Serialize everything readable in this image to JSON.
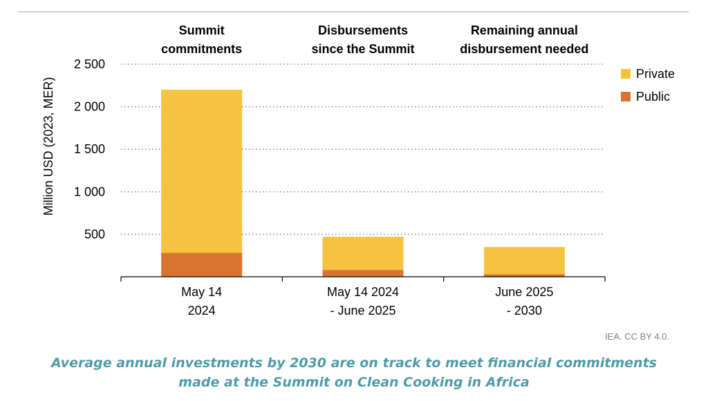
{
  "chart_data": {
    "type": "bar",
    "stacked": true,
    "categories": [
      [
        "May 14",
        "2024"
      ],
      [
        "May 14 2024",
        "- June 2025"
      ],
      [
        "June 2025",
        "- 2030"
      ]
    ],
    "group_headers": [
      [
        "Summit",
        "commitments"
      ],
      [
        "Disbursements",
        "since the Summit"
      ],
      [
        "Remaining annual",
        "disbursement needed"
      ]
    ],
    "series": [
      {
        "name": "Public",
        "values": [
          280,
          80,
          30
        ],
        "color": "#d97430"
      },
      {
        "name": "Private",
        "values": [
          1920,
          390,
          320
        ],
        "color": "#f5c242"
      }
    ],
    "legend_order": [
      "Private",
      "Public"
    ],
    "ylabel": "Million USD (2023, MER)",
    "ylim": [
      0,
      2500
    ],
    "yticks": [
      500,
      1000,
      1500,
      2000,
      2500
    ],
    "ytick_labels": [
      "500",
      "1 000",
      "1 500",
      "2 000",
      "2 500"
    ],
    "grid": true,
    "legend_position": "right"
  },
  "source": "IEA. CC BY 4.0.",
  "caption": {
    "line1": "Average annual investments by 2030 are on track to meet financial commitments",
    "line2": "made at the Summit on Clean Cooking in Africa"
  }
}
